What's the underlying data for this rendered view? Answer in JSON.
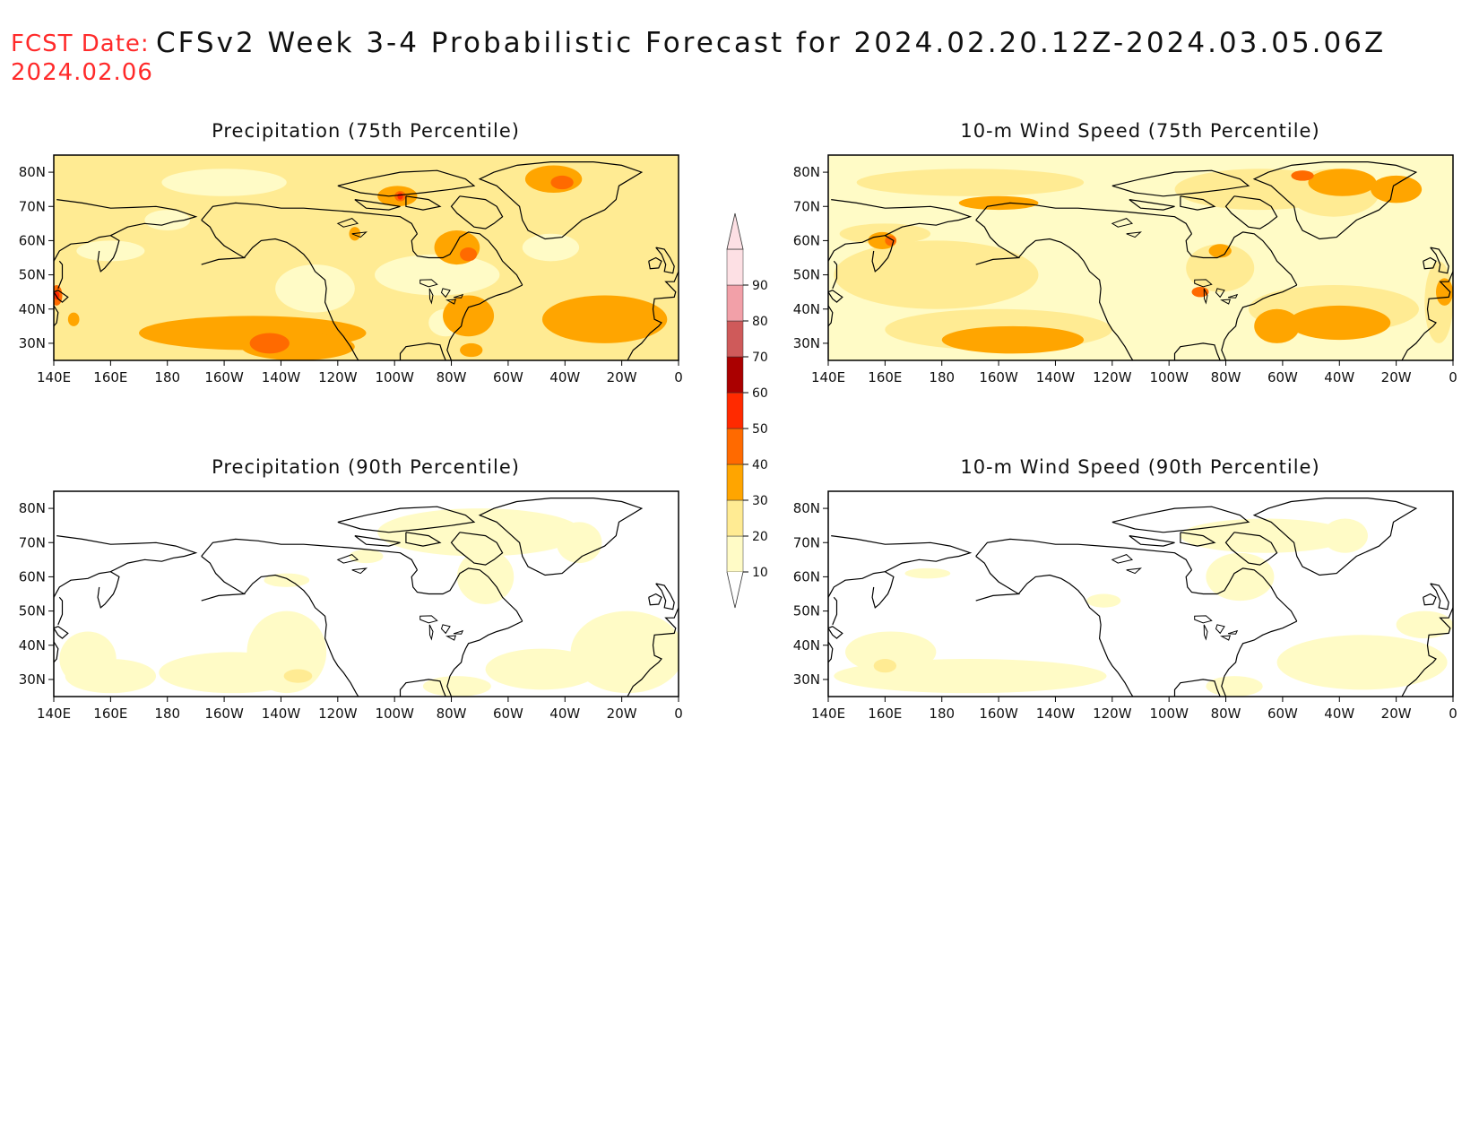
{
  "header": {
    "fcst_label": "FCST Date:",
    "fcst_date": "2024.02.06",
    "title": "CFSv2 Week 3-4 Probabilistic Forecast for 2024.02.20.12Z-2024.03.05.06Z"
  },
  "axes": {
    "lon_labels": [
      "140E",
      "160E",
      "180",
      "160W",
      "140W",
      "120W",
      "100W",
      "80W",
      "60W",
      "40W",
      "20W",
      "0"
    ],
    "lat_labels": [
      "80N",
      "70N",
      "60N",
      "50N",
      "40N",
      "30N"
    ],
    "lon_range": [
      140,
      360
    ],
    "lat_range": [
      25,
      85
    ]
  },
  "colorbar": {
    "levels": [
      "10",
      "20",
      "30",
      "40",
      "50",
      "60",
      "70",
      "80",
      "90"
    ],
    "colors": [
      "#fffbc6",
      "#ffeb93",
      "#ffa500",
      "#ff6a00",
      "#ff2a00",
      "#aa0000",
      "#cf5a5a",
      "#f2a0a8",
      "#fde0e4"
    ]
  },
  "panels": [
    {
      "id": "precip-75",
      "title": "Precipitation (75th Percentile)",
      "base_class": "20-30",
      "blobs": [
        {
          "c": 0,
          "lon": 200,
          "lat": 77,
          "rx": 22,
          "ry": 4
        },
        {
          "c": 0,
          "lon": 160,
          "lat": 57,
          "rx": 12,
          "ry": 3
        },
        {
          "c": 0,
          "lon": 232,
          "lat": 46,
          "rx": 14,
          "ry": 7
        },
        {
          "c": 0,
          "lon": 275,
          "lat": 50,
          "rx": 22,
          "ry": 6
        },
        {
          "c": 0,
          "lon": 278,
          "lat": 36,
          "rx": 6,
          "ry": 4
        },
        {
          "c": 0,
          "lon": 315,
          "lat": 58,
          "rx": 10,
          "ry": 4
        },
        {
          "c": 0,
          "lon": 180,
          "lat": 66,
          "rx": 8,
          "ry": 3
        },
        {
          "c": 2,
          "lon": 210,
          "lat": 33,
          "rx": 40,
          "ry": 5
        },
        {
          "c": 2,
          "lon": 226,
          "lat": 29,
          "rx": 20,
          "ry": 4
        },
        {
          "c": 2,
          "lon": 334,
          "lat": 37,
          "rx": 22,
          "ry": 7
        },
        {
          "c": 2,
          "lon": 286,
          "lat": 38,
          "rx": 9,
          "ry": 6
        },
        {
          "c": 2,
          "lon": 282,
          "lat": 58,
          "rx": 8,
          "ry": 5
        },
        {
          "c": 2,
          "lon": 316,
          "lat": 78,
          "rx": 10,
          "ry": 4
        },
        {
          "c": 2,
          "lon": 261,
          "lat": 73,
          "rx": 7,
          "ry": 3
        },
        {
          "c": 2,
          "lon": 246,
          "lat": 62,
          "rx": 2,
          "ry": 2
        },
        {
          "c": 2,
          "lon": 287,
          "lat": 28,
          "rx": 4,
          "ry": 2
        },
        {
          "c": 2,
          "lon": 147,
          "lat": 37,
          "rx": 2,
          "ry": 2
        },
        {
          "c": 3,
          "lon": 216,
          "lat": 30,
          "rx": 7,
          "ry": 3
        },
        {
          "c": 3,
          "lon": 286,
          "lat": 56,
          "rx": 3,
          "ry": 2
        },
        {
          "c": 3,
          "lon": 319,
          "lat": 77,
          "rx": 4,
          "ry": 2
        },
        {
          "c": 3,
          "lon": 141,
          "lat": 44,
          "rx": 2,
          "ry": 3
        },
        {
          "c": 3,
          "lon": 262,
          "lat": 73,
          "rx": 2,
          "ry": 1.5
        },
        {
          "c": 4,
          "lon": 262,
          "lat": 73,
          "rx": 1,
          "ry": 1
        },
        {
          "c": 4,
          "lon": 141,
          "lat": 44,
          "rx": 1,
          "ry": 1.2
        }
      ]
    },
    {
      "id": "wind-75",
      "title": "10-m Wind Speed (75th Percentile)",
      "base_class": "10-20",
      "blobs": [
        {
          "c": 1,
          "lon": 178,
          "lat": 50,
          "rx": 36,
          "ry": 10
        },
        {
          "c": 1,
          "lon": 200,
          "lat": 34,
          "rx": 40,
          "ry": 6
        },
        {
          "c": 1,
          "lon": 190,
          "lat": 77,
          "rx": 40,
          "ry": 4
        },
        {
          "c": 1,
          "lon": 318,
          "lat": 40,
          "rx": 30,
          "ry": 7
        },
        {
          "c": 1,
          "lon": 292,
          "lat": 75,
          "rx": 30,
          "ry": 6
        },
        {
          "c": 1,
          "lon": 318,
          "lat": 74,
          "rx": 16,
          "ry": 7
        },
        {
          "c": 1,
          "lon": 160,
          "lat": 62,
          "rx": 16,
          "ry": 3
        },
        {
          "c": 1,
          "lon": 278,
          "lat": 52,
          "rx": 12,
          "ry": 7
        },
        {
          "c": 1,
          "lon": 355,
          "lat": 42,
          "rx": 5,
          "ry": 12
        },
        {
          "c": 2,
          "lon": 205,
          "lat": 31,
          "rx": 25,
          "ry": 4
        },
        {
          "c": 2,
          "lon": 320,
          "lat": 36,
          "rx": 18,
          "ry": 5
        },
        {
          "c": 2,
          "lon": 298,
          "lat": 35,
          "rx": 8,
          "ry": 5
        },
        {
          "c": 2,
          "lon": 321,
          "lat": 77,
          "rx": 12,
          "ry": 4
        },
        {
          "c": 2,
          "lon": 340,
          "lat": 75,
          "rx": 9,
          "ry": 4
        },
        {
          "c": 2,
          "lon": 200,
          "lat": 71,
          "rx": 14,
          "ry": 2
        },
        {
          "c": 2,
          "lon": 159,
          "lat": 60,
          "rx": 5,
          "ry": 2.5
        },
        {
          "c": 2,
          "lon": 278,
          "lat": 57,
          "rx": 4,
          "ry": 2
        },
        {
          "c": 2,
          "lon": 357,
          "lat": 45,
          "rx": 3,
          "ry": 4
        },
        {
          "c": 3,
          "lon": 162,
          "lat": 60,
          "rx": 2,
          "ry": 1.5
        },
        {
          "c": 3,
          "lon": 271,
          "lat": 45,
          "rx": 3,
          "ry": 1.5
        },
        {
          "c": 3,
          "lon": 307,
          "lat": 79,
          "rx": 4,
          "ry": 1.5
        }
      ]
    },
    {
      "id": "precip-90",
      "title": "Precipitation (90th Percentile)",
      "base_class": "0-10",
      "blobs": [
        {
          "c": 0,
          "lon": 222,
          "lat": 38,
          "rx": 14,
          "ry": 12
        },
        {
          "c": 0,
          "lon": 203,
          "lat": 32,
          "rx": 26,
          "ry": 6
        },
        {
          "c": 0,
          "lon": 342,
          "lat": 38,
          "rx": 20,
          "ry": 12
        },
        {
          "c": 0,
          "lon": 312,
          "lat": 33,
          "rx": 20,
          "ry": 6
        },
        {
          "c": 0,
          "lon": 152,
          "lat": 36,
          "rx": 10,
          "ry": 8
        },
        {
          "c": 0,
          "lon": 160,
          "lat": 31,
          "rx": 16,
          "ry": 5
        },
        {
          "c": 0,
          "lon": 290,
          "lat": 73,
          "rx": 36,
          "ry": 7
        },
        {
          "c": 0,
          "lon": 292,
          "lat": 60,
          "rx": 10,
          "ry": 8
        },
        {
          "c": 0,
          "lon": 325,
          "lat": 70,
          "rx": 8,
          "ry": 6
        },
        {
          "c": 0,
          "lon": 282,
          "lat": 28,
          "rx": 12,
          "ry": 3
        },
        {
          "c": 0,
          "lon": 222,
          "lat": 59,
          "rx": 8,
          "ry": 2
        },
        {
          "c": 0,
          "lon": 250,
          "lat": 66,
          "rx": 6,
          "ry": 2
        },
        {
          "c": 1,
          "lon": 226,
          "lat": 31,
          "rx": 5,
          "ry": 2
        }
      ]
    },
    {
      "id": "wind-90",
      "title": "10-m Wind Speed (90th Percentile)",
      "base_class": "0-10",
      "blobs": [
        {
          "c": 0,
          "lon": 190,
          "lat": 31,
          "rx": 48,
          "ry": 5
        },
        {
          "c": 0,
          "lon": 162,
          "lat": 38,
          "rx": 16,
          "ry": 6
        },
        {
          "c": 0,
          "lon": 328,
          "lat": 35,
          "rx": 30,
          "ry": 8
        },
        {
          "c": 0,
          "lon": 350,
          "lat": 46,
          "rx": 10,
          "ry": 4
        },
        {
          "c": 0,
          "lon": 294,
          "lat": 72,
          "rx": 30,
          "ry": 5
        },
        {
          "c": 0,
          "lon": 285,
          "lat": 60,
          "rx": 12,
          "ry": 7
        },
        {
          "c": 0,
          "lon": 322,
          "lat": 72,
          "rx": 8,
          "ry": 5
        },
        {
          "c": 0,
          "lon": 283,
          "lat": 28,
          "rx": 10,
          "ry": 3
        },
        {
          "c": 0,
          "lon": 175,
          "lat": 61,
          "rx": 8,
          "ry": 1.5
        },
        {
          "c": 0,
          "lon": 237,
          "lat": 53,
          "rx": 6,
          "ry": 2
        },
        {
          "c": 1,
          "lon": 160,
          "lat": 34,
          "rx": 4,
          "ry": 2
        }
      ]
    }
  ]
}
